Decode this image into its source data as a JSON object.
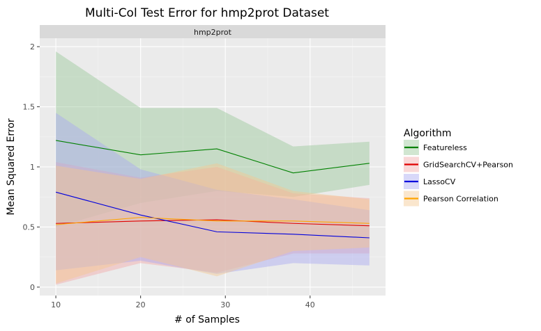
{
  "chart_data": {
    "type": "line",
    "title": "Multi-Col Test Error for hmp2prot Dataset",
    "facet_label": "hmp2prot",
    "xlabel": "# of Samples",
    "ylabel": "Mean Squared Error",
    "xlim": [
      8.1,
      48.9
    ],
    "ylim": [
      -0.07,
      2.07
    ],
    "xticks": [
      10,
      20,
      30,
      40
    ],
    "xtick_labels": [
      "10",
      "20",
      "30",
      "40"
    ],
    "yticks": [
      0,
      0.5,
      1,
      1.5,
      2
    ],
    "ytick_labels": [
      "0",
      "0.5",
      "1",
      "1.5",
      "2"
    ],
    "grid": true,
    "legend": {
      "title": "Algorithm",
      "position": "right"
    },
    "series": [
      {
        "name": "Featureless",
        "color": "#008000",
        "fill_color": "#98c898",
        "x": [
          10,
          20,
          29,
          38,
          47
        ],
        "y": [
          1.22,
          1.1,
          1.15,
          0.95,
          1.03
        ],
        "lower": [
          0.5,
          0.7,
          0.8,
          0.75,
          0.85
        ],
        "upper": [
          1.96,
          1.49,
          1.49,
          1.17,
          1.21
        ]
      },
      {
        "name": "GridSearchCV+Pearson",
        "color": "#e00000",
        "fill_color": "#f2a8a8",
        "x": [
          10,
          20,
          29,
          38,
          47
        ],
        "y": [
          0.53,
          0.55,
          0.56,
          0.53,
          0.51
        ],
        "lower": [
          0.02,
          0.2,
          0.12,
          0.28,
          0.28
        ],
        "upper": [
          1.04,
          0.91,
          1.0,
          0.78,
          0.74
        ]
      },
      {
        "name": "LassoCV",
        "color": "#0000dd",
        "fill_color": "#a8a8f2",
        "x": [
          10,
          20,
          29,
          38,
          47
        ],
        "y": [
          0.79,
          0.6,
          0.46,
          0.44,
          0.41
        ],
        "lower": [
          0.14,
          0.22,
          0.11,
          0.2,
          0.18
        ],
        "upper": [
          1.45,
          0.98,
          0.81,
          0.73,
          0.64
        ]
      },
      {
        "name": "Pearson Correlation",
        "color": "#ffa500",
        "fill_color": "#f5c890",
        "x": [
          10,
          20,
          29,
          38,
          47
        ],
        "y": [
          0.52,
          0.58,
          0.55,
          0.55,
          0.53
        ],
        "lower": [
          0.03,
          0.25,
          0.09,
          0.3,
          0.33
        ],
        "upper": [
          1.01,
          0.9,
          1.03,
          0.8,
          0.73
        ]
      }
    ]
  }
}
